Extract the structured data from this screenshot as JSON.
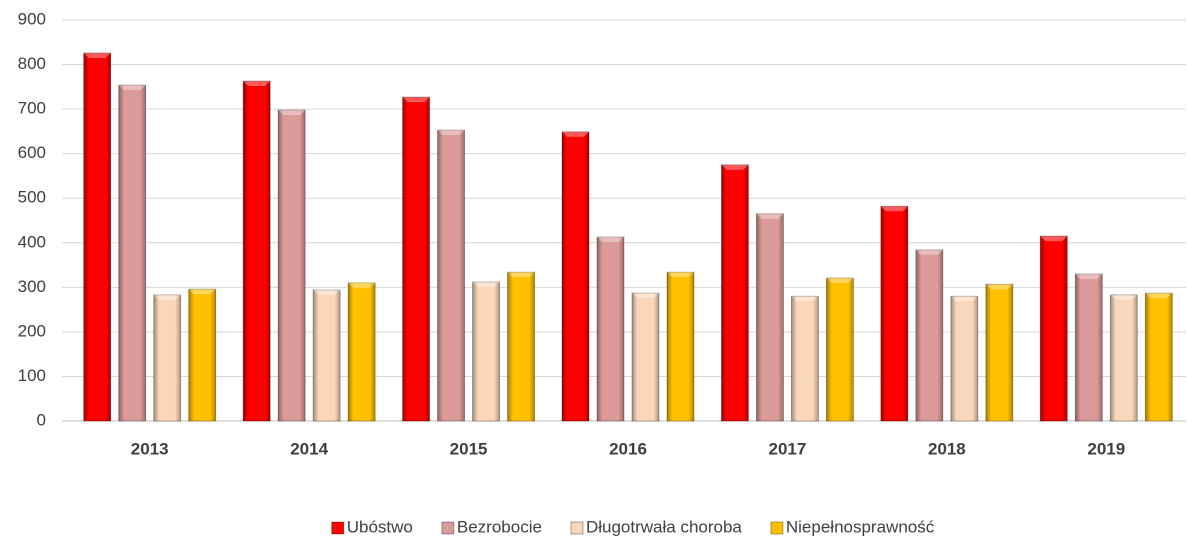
{
  "chart_data": {
    "type": "bar",
    "categories": [
      "2013",
      "2014",
      "2015",
      "2016",
      "2017",
      "2018",
      "2019"
    ],
    "series": [
      {
        "name": "Ubóstwo",
        "color": "#ff0000",
        "values": [
          826,
          763,
          727,
          649,
          575,
          482,
          415
        ]
      },
      {
        "name": "Bezrobocie",
        "color": "#dc9a98",
        "values": [
          754,
          698,
          653,
          413,
          465,
          384,
          330
        ]
      },
      {
        "name": "Długotrwała choroba",
        "color": "#fad7ba",
        "values": [
          283,
          294,
          312,
          287,
          280,
          280,
          283
        ]
      },
      {
        "name": "Niepełnosprawność",
        "color": "#ffc000",
        "values": [
          296,
          310,
          334,
          334,
          321,
          307,
          287
        ]
      }
    ],
    "ylim": [
      0,
      900
    ],
    "yticks": [
      0,
      100,
      200,
      300,
      400,
      500,
      600,
      700,
      800,
      900
    ],
    "grid": true,
    "legend": "bottom"
  }
}
